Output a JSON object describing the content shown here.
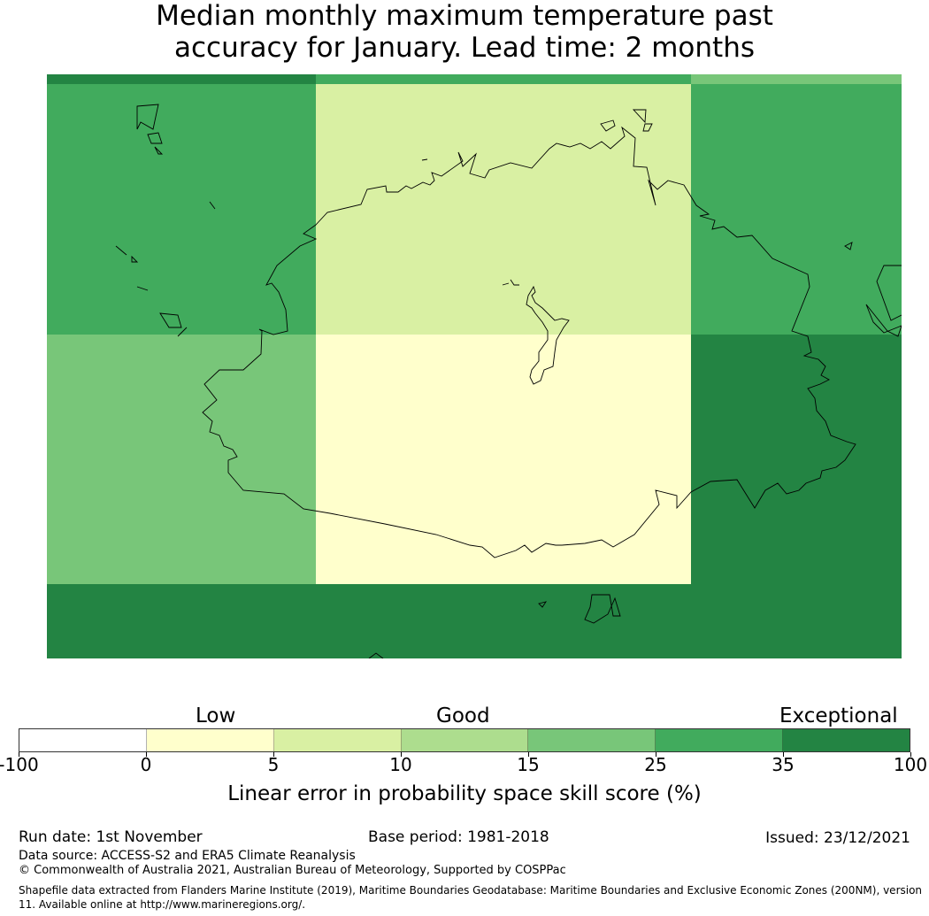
{
  "title_line1": "Median monthly maximum temperature past",
  "title_line2": "accuracy for January. Lead time: 2 months",
  "map": {
    "grid_rows": [
      [
        "#238443",
        "#41ab5d",
        "#78c679"
      ],
      [
        "#41ab5d",
        "#d9f0a3",
        "#41ab5d"
      ],
      [
        "#78c679",
        "#ffffcc",
        "#238443"
      ],
      [
        "#238443",
        "#238443",
        "#238443"
      ]
    ]
  },
  "colorbar": {
    "colors": [
      "#ffffff",
      "#ffffcc",
      "#d9f0a3",
      "#addd8e",
      "#78c679",
      "#41ab5d",
      "#238443"
    ],
    "ticks": [
      "-100",
      "0",
      "5",
      "10",
      "15",
      "25",
      "35",
      "100"
    ],
    "categories": [
      "Low",
      "Good",
      "Exceptional"
    ],
    "label": "Linear error in probability space skill score (%)"
  },
  "footer": {
    "run_date": "Run date: 1st November",
    "base_period": "Base period: 1981-2018",
    "issued": "Issued: 23/12/2021",
    "data_source": "Data source: ACCESS-S2 and ERA5 Climate Reanalysis",
    "copyright": "© Commonwealth of Australia 2021, Australian Bureau of Meteorology, Supported by COSPPac",
    "shapefile_1": "Shapefile data extracted from Flanders Marine Institute (2019), Maritime Boundaries Geodatabase: Maritime Boundaries and Exclusive Economic Zones (200NM), version",
    "shapefile_2": "11. Available online at http://www.marineregions.org/."
  }
}
